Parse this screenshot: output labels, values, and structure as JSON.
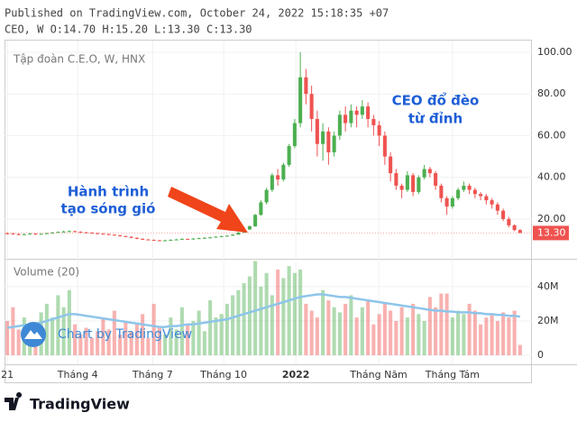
{
  "chart_data": {
    "type": "candlestick",
    "header": "Published on TradingView.com, October 24, 2022 15:18:35 +07",
    "ohlc_header": "CEO, W O:14.70 H:15.20 L:13.30 C:13.30",
    "title": "Tập đoàn C.E.O, W, HNX",
    "volume_title": "Volume (20)",
    "watermark": "Chart by TradingView",
    "logo": "TradingView",
    "annotations": [
      {
        "lines": [
          "CEO đổ đèo",
          "từ đỉnh"
        ],
        "color": "#1e5ed6"
      },
      {
        "lines": [
          "Hành trình",
          "tạo sóng gió"
        ],
        "color": "#1e5ed6"
      }
    ],
    "up_color": "#4caf50",
    "down_color": "#ef5350",
    "ma_color": "#8ec5ea",
    "grid": true,
    "last_value": {
      "value": 13.3,
      "label": "13.30"
    },
    "xlim": [
      -0.5,
      93.1
    ],
    "xticks": [
      {
        "value": 0,
        "label": "21"
      },
      {
        "value": 12.5,
        "label": "Tháng 4"
      },
      {
        "value": 25.8,
        "label": "Tháng 7"
      },
      {
        "value": 38.4,
        "label": "Tháng 10"
      },
      {
        "value": 51.2,
        "label": "2022"
      },
      {
        "value": 65.9,
        "label": "Tháng Năm"
      },
      {
        "value": 79,
        "label": "Tháng Tám"
      }
    ],
    "ylim": [
      1.8,
      105.6
    ],
    "yticks": [
      {
        "value": 20,
        "label": "20.00"
      },
      {
        "value": 40,
        "label": "40.00"
      },
      {
        "value": 60,
        "label": "60.00"
      },
      {
        "value": 80,
        "label": "80.00"
      },
      {
        "value": 100,
        "label": "100.00"
      }
    ],
    "y2lim": [
      -5.3,
      54.7
    ],
    "y2ticks": [
      0,
      {
        "value": 20,
        "label": "20M"
      },
      {
        "value": 40,
        "label": "40M"
      }
    ],
    "ohlc": [
      [
        13.2,
        13.6,
        12.6,
        13
      ],
      [
        13,
        13.4,
        12.5,
        12.8
      ],
      [
        12.8,
        13.1,
        12.2,
        12.5
      ],
      [
        12.5,
        13,
        12.3,
        12.7
      ],
      [
        12.7,
        13.3,
        12.5,
        13
      ],
      [
        13,
        13.2,
        12.4,
        12.6
      ],
      [
        12.6,
        13.1,
        12.5,
        12.9
      ],
      [
        12.9,
        13.5,
        12.8,
        13.2
      ],
      [
        13.2,
        13.8,
        13,
        13.5
      ],
      [
        13.5,
        14.1,
        13.3,
        13.8
      ],
      [
        13.8,
        14.4,
        13.6,
        14
      ],
      [
        14,
        14.6,
        13.8,
        14.2
      ],
      [
        14.2,
        14.4,
        13.7,
        13.9
      ],
      [
        13.9,
        14.1,
        13.4,
        13.6
      ],
      [
        13.6,
        13.9,
        13.3,
        13.5
      ],
      [
        13.5,
        13.7,
        13,
        13.2
      ],
      [
        13.2,
        13.5,
        12.8,
        13
      ],
      [
        13,
        13.2,
        12.6,
        12.8
      ],
      [
        12.8,
        13,
        12.3,
        12.5
      ],
      [
        12.5,
        12.7,
        12,
        12.2
      ],
      [
        12.2,
        12.4,
        11.6,
        11.8
      ],
      [
        11.8,
        12,
        11.3,
        11.5
      ],
      [
        11.5,
        11.7,
        10.8,
        11
      ],
      [
        11,
        11.2,
        10.3,
        10.5
      ],
      [
        10.5,
        10.8,
        10,
        10.2
      ],
      [
        10.2,
        10.4,
        9.8,
        10
      ],
      [
        10,
        10.2,
        9.6,
        9.8
      ],
      [
        9.8,
        10,
        9.5,
        9.7
      ],
      [
        9.7,
        10.1,
        9.6,
        9.8
      ],
      [
        9.8,
        10.3,
        9.7,
        10
      ],
      [
        10,
        10.5,
        9.9,
        10.2
      ],
      [
        10.2,
        10.8,
        10.1,
        10.5
      ],
      [
        10.5,
        10.6,
        10.1,
        10.3
      ],
      [
        10.3,
        10.9,
        10.2,
        10.6
      ],
      [
        10.6,
        11.1,
        10.5,
        10.8
      ],
      [
        10.8,
        11.3,
        10.6,
        11
      ],
      [
        11,
        11.5,
        10.9,
        11.2
      ],
      [
        11.2,
        11.8,
        11.1,
        11.5
      ],
      [
        11.5,
        12,
        11.3,
        11.8
      ],
      [
        11.8,
        12.3,
        11.6,
        12
      ],
      [
        12,
        12.8,
        11.9,
        12.5
      ],
      [
        12.5,
        13.8,
        12.4,
        13.5
      ],
      [
        13.5,
        15.4,
        13.3,
        15
      ],
      [
        15,
        17,
        14.8,
        16.5
      ],
      [
        16.5,
        22.5,
        16.3,
        22
      ],
      [
        22,
        29,
        21.5,
        28
      ],
      [
        28,
        35,
        27,
        34
      ],
      [
        34,
        42,
        33,
        41
      ],
      [
        41,
        44,
        36,
        39
      ],
      [
        39,
        47,
        38,
        46
      ],
      [
        46,
        56,
        45,
        55
      ],
      [
        55,
        68,
        54,
        66
      ],
      [
        66,
        100,
        64,
        88
      ],
      [
        88,
        92,
        75,
        80
      ],
      [
        80,
        84,
        62,
        68
      ],
      [
        68,
        72,
        50,
        56
      ],
      [
        56,
        66,
        48,
        62
      ],
      [
        62,
        64,
        46,
        52
      ],
      [
        52,
        62,
        50,
        60
      ],
      [
        60,
        72,
        58,
        70
      ],
      [
        70,
        74,
        62,
        66
      ],
      [
        66,
        75,
        64,
        72
      ],
      [
        72,
        74,
        64,
        70
      ],
      [
        70,
        77,
        68,
        74
      ],
      [
        74,
        76,
        64,
        68
      ],
      [
        68,
        70,
        60,
        65
      ],
      [
        65,
        67,
        55,
        60
      ],
      [
        60,
        62,
        46,
        50
      ],
      [
        50,
        52,
        38,
        42
      ],
      [
        42,
        44,
        34,
        36
      ],
      [
        36,
        37,
        30,
        34
      ],
      [
        34,
        43,
        33,
        41
      ],
      [
        41,
        42,
        31,
        33
      ],
      [
        33,
        41,
        32,
        40
      ],
      [
        40,
        46,
        39,
        44
      ],
      [
        44,
        45,
        40,
        42
      ],
      [
        42,
        43,
        34,
        36
      ],
      [
        36,
        37,
        28,
        30
      ],
      [
        30,
        31,
        22,
        26
      ],
      [
        26,
        31,
        25,
        30
      ],
      [
        30,
        35,
        29,
        34
      ],
      [
        34,
        38,
        33,
        36
      ],
      [
        36,
        37,
        32,
        34
      ],
      [
        34,
        35,
        30,
        32
      ],
      [
        32,
        33,
        29,
        31
      ],
      [
        31,
        32,
        27,
        29
      ],
      [
        29,
        30,
        25,
        27
      ],
      [
        27,
        28,
        22,
        24
      ],
      [
        24,
        25,
        19,
        20
      ],
      [
        20,
        21,
        16,
        17
      ],
      [
        17,
        17.5,
        14.2,
        14.7
      ],
      [
        14.7,
        15.2,
        13.3,
        13.3
      ]
    ],
    "volume": [
      20,
      28,
      15,
      22,
      12,
      18,
      25,
      30,
      22,
      35,
      28,
      38,
      18,
      12,
      16,
      10,
      14,
      22,
      15,
      26,
      12,
      20,
      14,
      18,
      24,
      10,
      30,
      16,
      12,
      22,
      15,
      28,
      18,
      20,
      26,
      14,
      32,
      22,
      24,
      30,
      35,
      38,
      42,
      46,
      55,
      40,
      48,
      35,
      50,
      45,
      52,
      48,
      50,
      30,
      26,
      22,
      38,
      32,
      28,
      25,
      30,
      35,
      22,
      28,
      32,
      18,
      24,
      30,
      26,
      20,
      28,
      22,
      30,
      24,
      20,
      34,
      28,
      36,
      36,
      22,
      26,
      24,
      30,
      26,
      18,
      22,
      24,
      20,
      25,
      22,
      26,
      6
    ],
    "volume_ma": [
      16,
      16.5,
      17,
      17.5,
      18,
      18.5,
      19,
      20,
      21,
      22,
      23,
      24,
      24,
      23.5,
      23,
      22.5,
      22,
      21.5,
      21,
      20.5,
      20,
      19.5,
      19,
      18.5,
      18,
      17.5,
      17,
      16.5,
      16.5,
      17,
      17,
      17.5,
      18,
      18,
      18.5,
      19,
      19.5,
      20,
      20.5,
      21,
      22,
      23,
      24,
      25,
      26,
      27,
      28,
      29,
      30,
      31,
      32,
      33,
      34,
      34.5,
      35,
      35.5,
      35.5,
      35,
      34.5,
      34,
      34,
      33.5,
      33,
      32.5,
      32,
      31.5,
      31,
      30.5,
      30,
      29.5,
      29,
      28.5,
      28,
      27.5,
      27,
      26.5,
      26,
      26,
      25.5,
      25.5,
      25,
      25,
      25,
      24.5,
      24.5,
      24,
      24,
      23.5,
      23.5,
      23,
      23,
      22.5
    ]
  }
}
